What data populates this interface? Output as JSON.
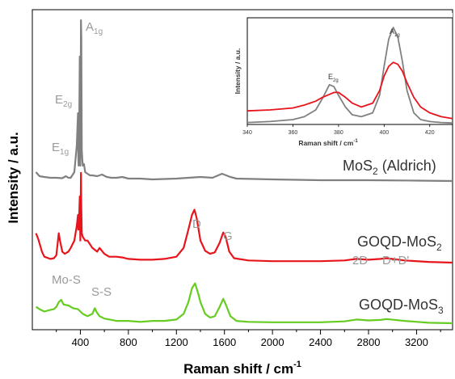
{
  "chart_data": {
    "type": "line",
    "xlabel": "Raman shift / cm",
    "xlabel_sup": "-1",
    "ylabel": "Intensity / a.u.",
    "xlim": [
      0,
      3500
    ],
    "xticks": [
      400,
      800,
      1200,
      1600,
      2000,
      2400,
      2800,
      3200
    ],
    "colors": {
      "aldrich": "#808080",
      "goqd2": "#e8141b",
      "goqd3": "#66cc22",
      "annot": "#9a9a9a"
    },
    "series": [
      {
        "key": "aldrich",
        "label_main": "MoS",
        "label_sub": "2",
        "label_tail": " (Aldrich)",
        "x": [
          30,
          60,
          100,
          150,
          200,
          250,
          280,
          300,
          320,
          350,
          370,
          380,
          383,
          386,
          390,
          395,
          400,
          405,
          408,
          412,
          415,
          420,
          430,
          440,
          460,
          480,
          500,
          540,
          580,
          620,
          660,
          700,
          750,
          800,
          900,
          1000,
          1200,
          1400,
          1500,
          1580,
          1650,
          1700,
          2000,
          2400,
          2800,
          3200,
          3500
        ],
        "y": [
          0.12,
          0.07,
          0.06,
          0.05,
          0.05,
          0.045,
          0.07,
          0.05,
          0.05,
          0.12,
          0.45,
          0.85,
          0.3,
          0.2,
          0.5,
          1.55,
          0.2,
          2.0,
          1.8,
          0.4,
          0.3,
          0.2,
          0.22,
          0.12,
          0.1,
          0.08,
          0.08,
          0.07,
          0.09,
          0.06,
          0.05,
          0.05,
          0.06,
          0.04,
          0.04,
          0.03,
          0.04,
          0.06,
          0.05,
          0.1,
          0.06,
          0.04,
          0.03,
          0.02,
          0.02,
          0.015,
          0.01
        ]
      },
      {
        "key": "goqd2",
        "label_main": "GOQD-MoS",
        "label_sub": "2",
        "label_tail": "",
        "x": [
          30,
          50,
          80,
          100,
          150,
          180,
          200,
          220,
          230,
          250,
          270,
          300,
          320,
          350,
          370,
          380,
          383,
          386,
          390,
          395,
          400,
          405,
          408,
          412,
          420,
          440,
          460,
          500,
          540,
          560,
          600,
          640,
          700,
          750,
          800,
          900,
          1000,
          1100,
          1200,
          1260,
          1300,
          1330,
          1350,
          1370,
          1400,
          1440,
          1480,
          1520,
          1560,
          1590,
          1610,
          1640,
          1680,
          1800,
          2000,
          2400,
          2600,
          2700,
          2800,
          2900,
          2950,
          3100,
          3300,
          3500
        ],
        "y": [
          0.4,
          0.32,
          0.15,
          0.08,
          0.05,
          0.06,
          0.1,
          0.4,
          0.3,
          0.15,
          0.12,
          0.15,
          0.2,
          0.3,
          0.5,
          0.65,
          0.45,
          0.45,
          0.6,
          0.9,
          0.3,
          1.22,
          0.75,
          0.4,
          0.35,
          0.3,
          0.3,
          0.2,
          0.15,
          0.2,
          0.12,
          0.08,
          0.08,
          0.07,
          0.05,
          0.04,
          0.04,
          0.05,
          0.08,
          0.2,
          0.45,
          0.65,
          0.72,
          0.6,
          0.3,
          0.16,
          0.12,
          0.14,
          0.27,
          0.41,
          0.35,
          0.15,
          0.06,
          0.03,
          0.02,
          0.02,
          0.03,
          0.05,
          0.04,
          0.05,
          0.06,
          0.03,
          0.01,
          0.0
        ]
      },
      {
        "key": "goqd3",
        "label_main": "GOQD-MoS",
        "label_sub": "3",
        "label_tail": "",
        "x": [
          30,
          60,
          100,
          140,
          180,
          200,
          220,
          240,
          260,
          300,
          340,
          380,
          420,
          460,
          500,
          520,
          540,
          560,
          600,
          700,
          800,
          900,
          1000,
          1100,
          1200,
          1260,
          1300,
          1330,
          1355,
          1380,
          1400,
          1440,
          1480,
          1520,
          1560,
          1590,
          1615,
          1650,
          1700,
          1800,
          2000,
          2400,
          2600,
          2700,
          2800,
          2900,
          2950,
          3100,
          3300,
          3500
        ],
        "y": [
          0.35,
          0.3,
          0.25,
          0.28,
          0.3,
          0.35,
          0.45,
          0.5,
          0.4,
          0.38,
          0.32,
          0.3,
          0.2,
          0.15,
          0.2,
          0.32,
          0.22,
          0.15,
          0.1,
          0.05,
          0.05,
          0.03,
          0.05,
          0.05,
          0.08,
          0.2,
          0.45,
          0.75,
          0.85,
          0.65,
          0.45,
          0.2,
          0.12,
          0.15,
          0.35,
          0.52,
          0.38,
          0.15,
          0.05,
          0.03,
          0.02,
          0.02,
          0.04,
          0.08,
          0.06,
          0.07,
          0.09,
          0.05,
          0.01,
          0.0
        ]
      }
    ],
    "annotations": {
      "a1g": {
        "main": "A",
        "sub": "1g"
      },
      "e2g": {
        "main": "E",
        "sub": "2g"
      },
      "e1g": {
        "main": "E",
        "sub": "1g"
      },
      "d": "D",
      "g": "G",
      "twod": "2D",
      "ddp": "D+D'",
      "mos": "Mo-S",
      "ss": "S-S"
    },
    "inset": {
      "xlabel": "Raman shift / cm",
      "xlabel_sup": "-1",
      "ylabel": "Intensity / a.u.",
      "xlim": [
        340,
        430
      ],
      "xticks": [
        340,
        360,
        380,
        400,
        420
      ],
      "ylim": [
        0,
        1.1
      ],
      "annot_e2g": {
        "main": "E",
        "sub": "2g"
      },
      "annot_a1g": {
        "main": "A",
        "sub": "1g"
      },
      "series": [
        {
          "key": "aldrich",
          "x": [
            340,
            350,
            360,
            365,
            370,
            373,
            376,
            378,
            380,
            383,
            386,
            390,
            395,
            398,
            400,
            402,
            404,
            406,
            408,
            410,
            413,
            416,
            420,
            425,
            430
          ],
          "y": [
            0.02,
            0.03,
            0.05,
            0.08,
            0.15,
            0.27,
            0.41,
            0.39,
            0.3,
            0.18,
            0.1,
            0.08,
            0.12,
            0.3,
            0.6,
            0.88,
            1.0,
            0.9,
            0.65,
            0.35,
            0.12,
            0.05,
            0.03,
            0.02,
            0.015
          ]
        },
        {
          "key": "goqd2",
          "x": [
            340,
            350,
            360,
            365,
            370,
            373,
            376,
            378,
            380,
            383,
            386,
            390,
            395,
            398,
            400,
            402,
            404,
            406,
            408,
            410,
            413,
            416,
            420,
            425,
            430
          ],
          "y": [
            0.14,
            0.15,
            0.17,
            0.2,
            0.24,
            0.28,
            0.31,
            0.33,
            0.33,
            0.28,
            0.22,
            0.18,
            0.22,
            0.35,
            0.5,
            0.6,
            0.64,
            0.62,
            0.55,
            0.43,
            0.28,
            0.18,
            0.12,
            0.08,
            0.06
          ]
        }
      ]
    }
  }
}
